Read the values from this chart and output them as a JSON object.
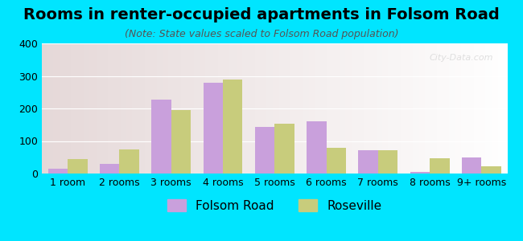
{
  "title": "Rooms in renter-occupied apartments in Folsom Road",
  "subtitle": "(Note: State values scaled to Folsom Road population)",
  "categories": [
    "1 room",
    "2 rooms",
    "3 rooms",
    "4 rooms",
    "5 rooms",
    "6 rooms",
    "7 rooms",
    "8 rooms",
    "9+ rooms"
  ],
  "folsom_road": [
    15,
    30,
    228,
    278,
    142,
    160,
    72,
    5,
    50
  ],
  "roseville": [
    45,
    75,
    195,
    288,
    152,
    78,
    72,
    47,
    22
  ],
  "folsom_color": "#c9a0dc",
  "roseville_color": "#c8cc7c",
  "background_outer": "#00e5ff",
  "ylim": [
    0,
    400
  ],
  "yticks": [
    0,
    100,
    200,
    300,
    400
  ],
  "bar_width": 0.38,
  "title_fontsize": 14,
  "subtitle_fontsize": 9,
  "legend_fontsize": 11,
  "axis_fontsize": 9,
  "watermark_text": "City-Data.com"
}
